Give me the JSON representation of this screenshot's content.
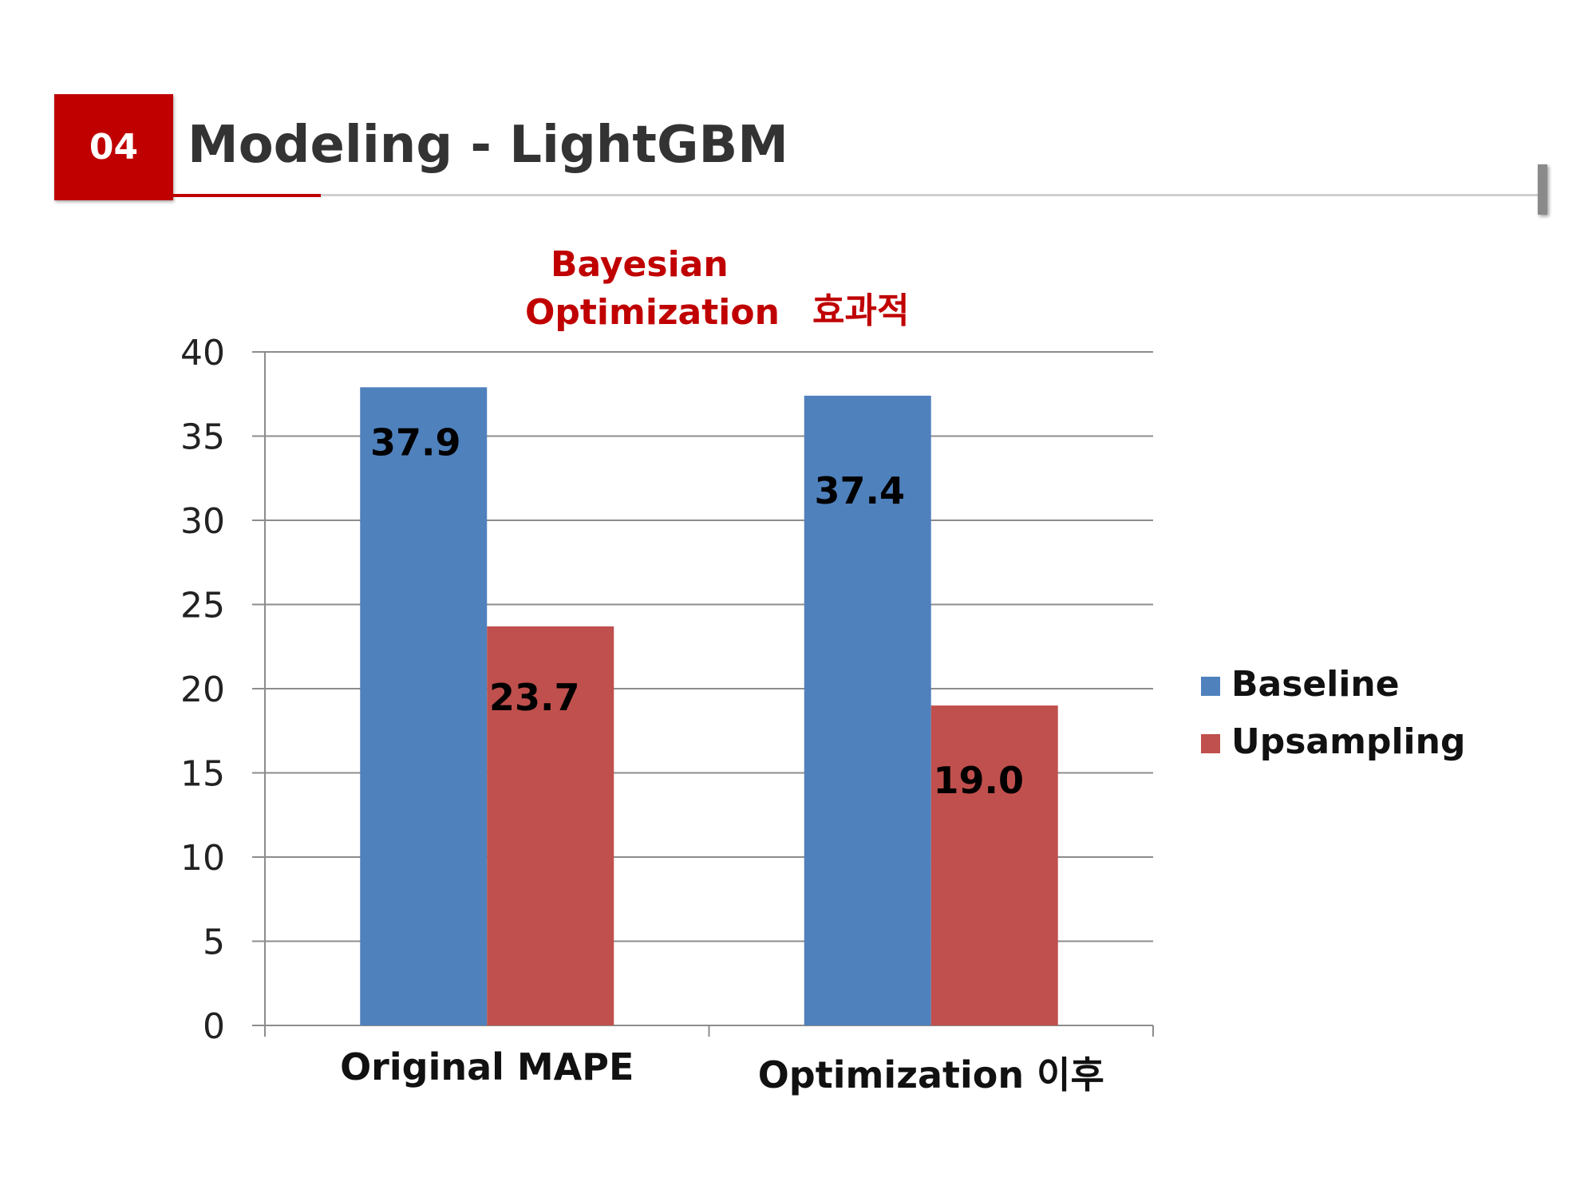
{
  "header": {
    "section_number": "04",
    "title": "Modeling - LightGBM"
  },
  "annotations": {
    "line1": "Bayesian",
    "line2": "Optimization",
    "line3": "효과적"
  },
  "chart_data": {
    "type": "bar",
    "categories": [
      "Original MAPE",
      "Optimization 이후"
    ],
    "series": [
      {
        "name": "Baseline",
        "values": [
          37.9,
          37.4
        ],
        "labels": [
          "37.9",
          "37.4"
        ],
        "color": "#4f81bd"
      },
      {
        "name": "Upsampling",
        "values": [
          23.7,
          19.0
        ],
        "labels": [
          "23.7",
          "19.0"
        ],
        "color": "#c0504d"
      }
    ],
    "title": "",
    "xlabel": "",
    "ylabel": "",
    "ylim": [
      0,
      40
    ],
    "yticks": [
      0,
      5,
      10,
      15,
      20,
      25,
      30,
      35,
      40
    ],
    "grid": true,
    "legend_position": "right"
  }
}
